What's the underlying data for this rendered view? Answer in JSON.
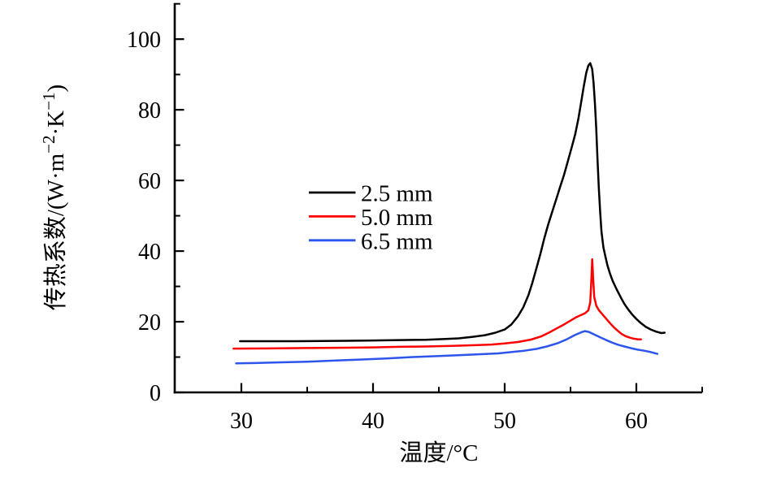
{
  "chart_data": {
    "type": "line",
    "title": "",
    "grid": false,
    "x_axis": {
      "label": "温度/°C",
      "range": [
        25,
        65
      ],
      "major_ticks": [
        30,
        40,
        50,
        60
      ],
      "minor_ticks": [
        35,
        45,
        55,
        65
      ]
    },
    "y_axis": {
      "label_plain": "传热系数/(W·m−2·K−1)",
      "label_parts": [
        {
          "t": "传热系数/(W·m",
          "sup": false
        },
        {
          "t": "−2",
          "sup": true
        },
        {
          "t": "·K",
          "sup": false
        },
        {
          "t": "−1",
          "sup": true
        },
        {
          "t": ")",
          "sup": false
        }
      ],
      "range": [
        0,
        110
      ],
      "major_ticks": [
        0,
        20,
        40,
        60,
        80,
        100
      ],
      "minor_ticks": [
        10,
        30,
        50,
        70,
        90,
        110
      ]
    },
    "legend": {
      "position": "center-left-inside",
      "items": [
        {
          "label": "2.5 mm",
          "color": "#000000"
        },
        {
          "label": "5.0 mm",
          "color": "#ff0000"
        },
        {
          "label": "6.5 mm",
          "color": "#2c55ee"
        }
      ]
    },
    "series": [
      {
        "name": "2.5 mm",
        "color": "#000000",
        "points": [
          [
            29.9,
            14.5
          ],
          [
            32,
            14.5
          ],
          [
            34,
            14.5
          ],
          [
            36,
            14.55
          ],
          [
            38,
            14.6
          ],
          [
            40,
            14.7
          ],
          [
            42,
            14.8
          ],
          [
            44,
            14.9
          ],
          [
            45.5,
            15.1
          ],
          [
            46.5,
            15.3
          ],
          [
            47.5,
            15.7
          ],
          [
            48.5,
            16.2
          ],
          [
            49.3,
            16.9
          ],
          [
            50,
            17.8
          ],
          [
            50.5,
            19.2
          ],
          [
            51,
            21.5
          ],
          [
            51.4,
            24
          ],
          [
            51.8,
            27.5
          ],
          [
            52.1,
            31
          ],
          [
            52.4,
            35
          ],
          [
            52.7,
            39
          ],
          [
            53,
            43.5
          ],
          [
            53.3,
            47.5
          ],
          [
            53.6,
            51
          ],
          [
            53.9,
            54.5
          ],
          [
            54.2,
            58
          ],
          [
            54.5,
            61.5
          ],
          [
            54.8,
            65.5
          ],
          [
            55.1,
            69.5
          ],
          [
            55.35,
            73
          ],
          [
            55.6,
            77.5
          ],
          [
            55.8,
            82
          ],
          [
            56,
            86.5
          ],
          [
            56.2,
            90.5
          ],
          [
            56.35,
            92.5
          ],
          [
            56.5,
            93.2
          ],
          [
            56.65,
            91.5
          ],
          [
            56.75,
            87.5
          ],
          [
            56.85,
            82
          ],
          [
            56.95,
            75
          ],
          [
            57.05,
            66
          ],
          [
            57.15,
            58
          ],
          [
            57.25,
            51
          ],
          [
            57.35,
            45.5
          ],
          [
            57.5,
            41
          ],
          [
            57.65,
            38.5
          ],
          [
            57.8,
            36
          ],
          [
            58,
            33.6
          ],
          [
            58.2,
            31.6
          ],
          [
            58.5,
            29.2
          ],
          [
            58.8,
            27
          ],
          [
            59.1,
            25
          ],
          [
            59.4,
            23.4
          ],
          [
            59.7,
            22
          ],
          [
            60,
            20.8
          ],
          [
            60.35,
            19.6
          ],
          [
            60.7,
            18.6
          ],
          [
            61.1,
            17.8
          ],
          [
            61.5,
            17.2
          ],
          [
            61.9,
            16.8
          ],
          [
            62.15,
            16.9
          ]
        ]
      },
      {
        "name": "5.0 mm",
        "color": "#ff0000",
        "points": [
          [
            29.4,
            12.4
          ],
          [
            32,
            12.45
          ],
          [
            35,
            12.55
          ],
          [
            38,
            12.65
          ],
          [
            40,
            12.75
          ],
          [
            42,
            12.9
          ],
          [
            44,
            13
          ],
          [
            46,
            13.15
          ],
          [
            48,
            13.4
          ],
          [
            49,
            13.55
          ],
          [
            50,
            13.85
          ],
          [
            51,
            14.25
          ],
          [
            52,
            14.95
          ],
          [
            52.8,
            15.9
          ],
          [
            53.4,
            17
          ],
          [
            53.9,
            18
          ],
          [
            54.4,
            19
          ],
          [
            54.9,
            20.1
          ],
          [
            55.4,
            21.2
          ],
          [
            55.8,
            21.9
          ],
          [
            56.1,
            22.4
          ],
          [
            56.35,
            23.2
          ],
          [
            56.5,
            25.5
          ],
          [
            56.6,
            33
          ],
          [
            56.65,
            37.7
          ],
          [
            56.72,
            32
          ],
          [
            56.8,
            27
          ],
          [
            56.95,
            24.6
          ],
          [
            57.15,
            23.3
          ],
          [
            57.4,
            22.2
          ],
          [
            57.7,
            20.9
          ],
          [
            58,
            19.6
          ],
          [
            58.3,
            18.4
          ],
          [
            58.6,
            17.4
          ],
          [
            58.9,
            16.5
          ],
          [
            59.2,
            15.9
          ],
          [
            59.5,
            15.5
          ],
          [
            59.8,
            15.2
          ],
          [
            60.1,
            15.05
          ],
          [
            60.35,
            15
          ]
        ]
      },
      {
        "name": "6.5 mm",
        "color": "#2c55ee",
        "points": [
          [
            29.6,
            8.2
          ],
          [
            31,
            8.3
          ],
          [
            33,
            8.5
          ],
          [
            35,
            8.7
          ],
          [
            37,
            9
          ],
          [
            39,
            9.3
          ],
          [
            41,
            9.6
          ],
          [
            43,
            10
          ],
          [
            45,
            10.3
          ],
          [
            47,
            10.6
          ],
          [
            48.5,
            10.85
          ],
          [
            49.5,
            11.05
          ],
          [
            50.5,
            11.4
          ],
          [
            51.5,
            11.8
          ],
          [
            52.4,
            12.3
          ],
          [
            53.2,
            13
          ],
          [
            54,
            13.9
          ],
          [
            54.7,
            15
          ],
          [
            55.3,
            16.2
          ],
          [
            55.8,
            17
          ],
          [
            56.1,
            17.35
          ],
          [
            56.4,
            17.1
          ],
          [
            56.8,
            16.4
          ],
          [
            57.2,
            15.7
          ],
          [
            57.6,
            15
          ],
          [
            58.1,
            14.2
          ],
          [
            58.6,
            13.5
          ],
          [
            59.1,
            13
          ],
          [
            59.6,
            12.5
          ],
          [
            60.1,
            12.1
          ],
          [
            60.6,
            11.8
          ],
          [
            61.1,
            11.4
          ],
          [
            61.6,
            10.9
          ]
        ]
      }
    ]
  }
}
